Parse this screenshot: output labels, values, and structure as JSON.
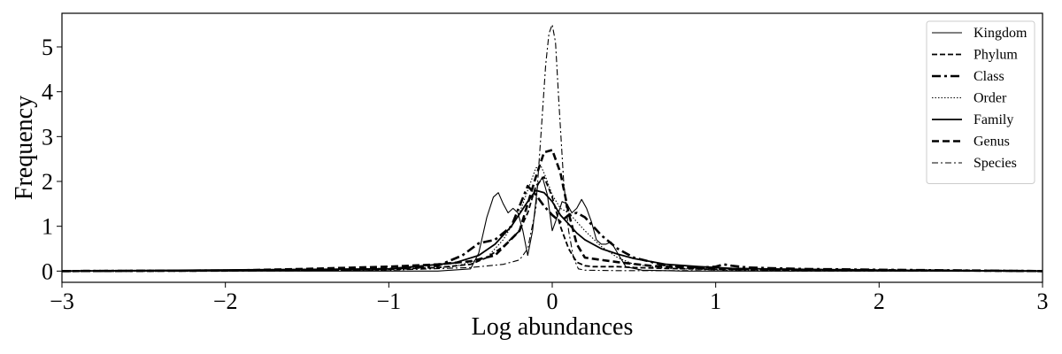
{
  "chart_data": {
    "type": "line",
    "xlabel": "Log abundances",
    "ylabel": "Frequency",
    "xlim": [
      -3,
      3
    ],
    "ylim": [
      -0.25,
      5.75
    ],
    "xticks": [
      -3,
      -2,
      -1,
      0,
      1,
      2,
      3
    ],
    "xtick_labels": [
      "−3",
      "−2",
      "−1",
      "0",
      "1",
      "2",
      "3"
    ],
    "yticks": [
      0,
      1,
      2,
      3,
      4,
      5
    ],
    "ytick_labels": [
      "0",
      "1",
      "2",
      "3",
      "4",
      "5"
    ],
    "grid": false,
    "legend_position": "top-right",
    "series": [
      {
        "name": "Kingdom",
        "style": "thin-solid",
        "x": [
          -3,
          -1.5,
          -0.7,
          -0.5,
          -0.45,
          -0.4,
          -0.36,
          -0.33,
          -0.3,
          -0.27,
          -0.24,
          -0.21,
          -0.18,
          -0.15,
          -0.12,
          -0.09,
          -0.06,
          -0.03,
          0,
          0.03,
          0.06,
          0.09,
          0.12,
          0.15,
          0.18,
          0.21,
          0.24,
          0.27,
          0.3,
          0.33,
          0.36,
          0.4,
          0.45,
          0.55,
          0.8,
          1.5,
          3
        ],
        "y": [
          0,
          0,
          0,
          0.05,
          0.4,
          1.2,
          1.65,
          1.75,
          1.5,
          1.3,
          1.4,
          1.3,
          0.9,
          0.35,
          0.9,
          1.9,
          2.1,
          1.7,
          0.9,
          1.2,
          1.55,
          1.5,
          1.3,
          1.4,
          1.6,
          1.4,
          1.1,
          0.7,
          0.6,
          0.6,
          0.65,
          0.4,
          0.1,
          0.02,
          0,
          0,
          0
        ]
      },
      {
        "name": "Phylum",
        "style": "dashed",
        "x": [
          -3,
          -1.5,
          -1.0,
          -0.7,
          -0.5,
          -0.4,
          -0.3,
          -0.2,
          -0.15,
          -0.1,
          -0.05,
          0,
          0.05,
          0.1,
          0.15,
          0.2,
          0.25,
          0.3,
          0.4,
          0.5,
          0.7,
          1.0,
          1.5,
          2.0,
          3
        ],
        "y": [
          0,
          0.02,
          0.04,
          0.08,
          0.15,
          0.3,
          0.55,
          0.9,
          1.3,
          1.9,
          2.1,
          1.65,
          1.0,
          0.5,
          0.2,
          0.12,
          0.1,
          0.1,
          0.1,
          0.08,
          0.06,
          0.04,
          0.03,
          0.02,
          0
        ]
      },
      {
        "name": "Class",
        "style": "dash-dot-bold",
        "x": [
          -3,
          -1.5,
          -1.0,
          -0.7,
          -0.55,
          -0.45,
          -0.35,
          -0.25,
          -0.15,
          -0.1,
          -0.05,
          0,
          0.05,
          0.1,
          0.15,
          0.2,
          0.25,
          0.3,
          0.4,
          0.5,
          0.7,
          0.9,
          1.0,
          1.05,
          1.1,
          1.2,
          1.5,
          2.0,
          3
        ],
        "y": [
          0,
          0.02,
          0.05,
          0.12,
          0.35,
          0.62,
          0.7,
          1.0,
          1.9,
          1.7,
          1.45,
          1.25,
          1.1,
          1.25,
          1.3,
          1.2,
          1.0,
          0.8,
          0.5,
          0.3,
          0.12,
          0.08,
          0.1,
          0.15,
          0.12,
          0.08,
          0.05,
          0.03,
          0
        ]
      },
      {
        "name": "Order",
        "style": "dotted",
        "x": [
          -3,
          -1.0,
          -0.6,
          -0.4,
          -0.3,
          -0.2,
          -0.15,
          -0.1,
          -0.07,
          -0.04,
          0,
          0.05,
          0.1,
          0.15,
          0.2,
          0.3,
          0.4,
          0.5,
          0.7,
          1.0,
          1.5,
          3
        ],
        "y": [
          0,
          0.02,
          0.1,
          0.3,
          0.7,
          1.3,
          1.8,
          2.3,
          2.35,
          2.1,
          1.7,
          1.4,
          1.3,
          1.1,
          0.9,
          0.55,
          0.3,
          0.15,
          0.06,
          0.03,
          0.01,
          0
        ]
      },
      {
        "name": "Family",
        "style": "solid",
        "x": [
          -3,
          -1.0,
          -0.6,
          -0.45,
          -0.35,
          -0.25,
          -0.15,
          -0.1,
          -0.05,
          0,
          0.05,
          0.1,
          0.15,
          0.2,
          0.3,
          0.4,
          0.5,
          0.7,
          0.9,
          1.1,
          1.5,
          2.0,
          3
        ],
        "y": [
          0,
          0.05,
          0.18,
          0.35,
          0.6,
          1.0,
          1.55,
          1.8,
          1.75,
          1.55,
          1.25,
          1.05,
          0.85,
          0.7,
          0.5,
          0.38,
          0.28,
          0.15,
          0.1,
          0.06,
          0.04,
          0.02,
          0
        ]
      },
      {
        "name": "Genus",
        "style": "dashed-bold",
        "x": [
          -3,
          -2.0,
          -1.5,
          -1.0,
          -0.7,
          -0.5,
          -0.35,
          -0.2,
          -0.1,
          -0.05,
          0,
          0.05,
          0.1,
          0.15,
          0.2,
          0.3,
          0.4,
          0.6,
          0.8,
          1.0,
          1.5,
          2.0,
          3
        ],
        "y": [
          0,
          0.01,
          0.05,
          0.1,
          0.15,
          0.22,
          0.35,
          0.9,
          2.1,
          2.65,
          2.7,
          2.2,
          1.3,
          0.6,
          0.3,
          0.25,
          0.2,
          0.12,
          0.08,
          0.05,
          0.03,
          0.02,
          0
        ]
      },
      {
        "name": "Species",
        "style": "dash-dot-thin",
        "x": [
          -3,
          -1.0,
          -0.5,
          -0.3,
          -0.2,
          -0.15,
          -0.1,
          -0.07,
          -0.04,
          -0.02,
          0,
          0.02,
          0.04,
          0.07,
          0.1,
          0.13,
          0.16,
          0.2,
          0.4,
          0.8,
          1.5,
          3
        ],
        "y": [
          0,
          0.02,
          0.08,
          0.15,
          0.25,
          0.5,
          1.4,
          3.0,
          4.6,
          5.3,
          5.5,
          5.1,
          3.8,
          2.0,
          0.9,
          0.3,
          0.05,
          0.02,
          0.01,
          0.01,
          0,
          0
        ]
      }
    ]
  }
}
